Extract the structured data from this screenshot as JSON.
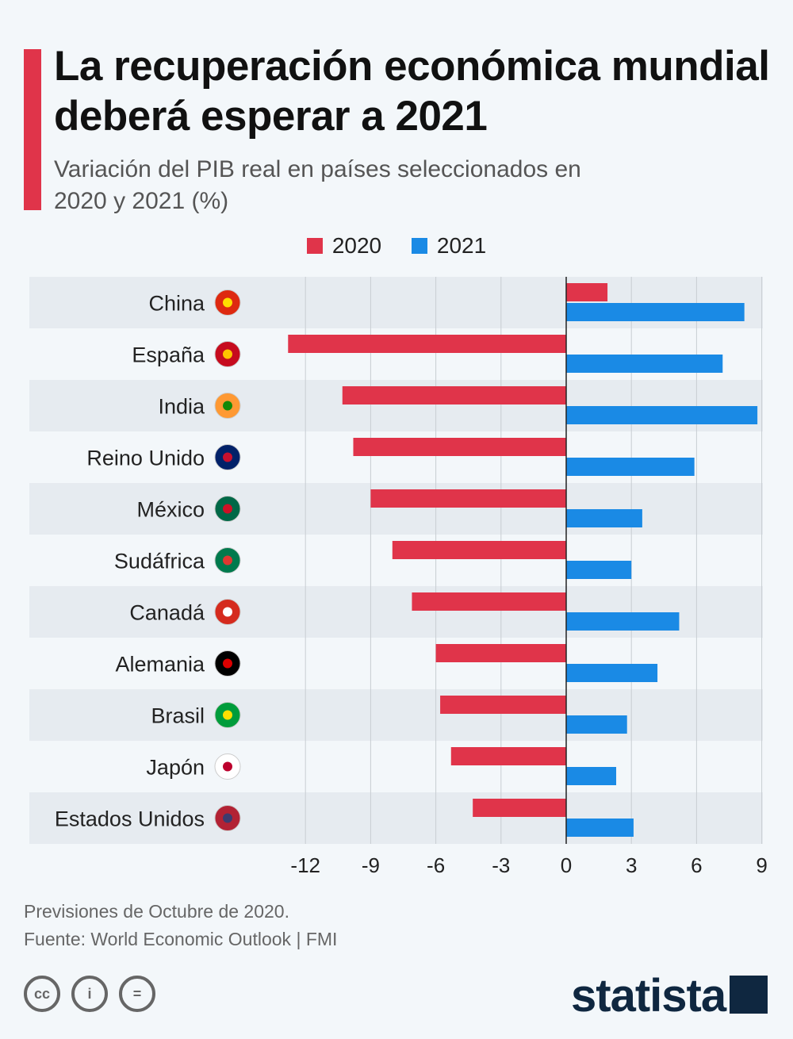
{
  "header": {
    "title": "La recuperación económica mundial deberá esperar a 2021",
    "subtitle": "Variación del PIB real en países seleccionados en 2020 y 2021 (%)"
  },
  "colors": {
    "s2020": "#e0344a",
    "s2021": "#1a8ae5",
    "accent": "#e0344a"
  },
  "chart_data": {
    "type": "bar",
    "orientation": "horizontal",
    "title": "La recuperación económica mundial deberá esperar a 2021",
    "categories": [
      "China",
      "España",
      "India",
      "Reino Unido",
      "México",
      "Sudáfrica",
      "Canadá",
      "Alemania",
      "Brasil",
      "Japón",
      "Estados Unidos"
    ],
    "series": [
      {
        "name": "2020",
        "values": [
          1.9,
          -12.8,
          -10.3,
          -9.8,
          -9.0,
          -8.0,
          -7.1,
          -6.0,
          -5.8,
          -5.3,
          -4.3
        ]
      },
      {
        "name": "2021",
        "values": [
          8.2,
          7.2,
          8.8,
          5.9,
          3.5,
          3.0,
          5.2,
          4.2,
          2.8,
          2.3,
          3.1
        ]
      }
    ],
    "xlim": [
      -12,
      9
    ],
    "xticks": [
      "-12",
      "-9",
      "-6",
      "-3",
      "0",
      "3",
      "6",
      "9"
    ],
    "grid": true,
    "legend": "top-center"
  },
  "footer": {
    "note": "Previsiones de Octubre de 2020.",
    "source": "Fuente: World Economic Outlook | FMI",
    "brand": "statista",
    "cc_labels": [
      "cc",
      "i",
      "="
    ]
  }
}
